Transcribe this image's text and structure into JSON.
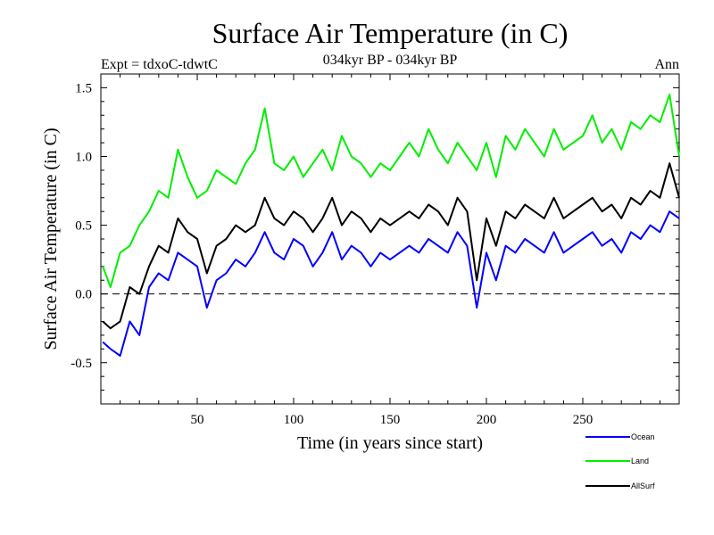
{
  "chart_data": {
    "type": "line",
    "title": "Surface Air Temperature (in C)",
    "subtitle": "034kyr BP - 034kyr BP",
    "experiment_label": "Expt = tdxoC-tdwtC",
    "season_label": "Ann",
    "xlabel": "Time (in years since start)",
    "ylabel": "Surface Air Temperature (in C)",
    "xlim": [
      0,
      300
    ],
    "ylim": [
      -0.8,
      1.6
    ],
    "x_ticks": [
      50,
      100,
      150,
      200,
      250
    ],
    "y_ticks": [
      -0.5,
      0.0,
      0.5,
      1.0,
      1.5
    ],
    "y_tick_labels": [
      "-0.5",
      "0.0",
      "0.5",
      "1.0",
      "1.5"
    ],
    "zero_line": "dashed",
    "legend_position": "bottom-right, below plot",
    "series": [
      {
        "name": "Ocean",
        "color": "#0000ff",
        "x": [
          1,
          5,
          10,
          15,
          20,
          25,
          30,
          35,
          40,
          45,
          50,
          55,
          60,
          65,
          70,
          75,
          80,
          85,
          90,
          95,
          100,
          105,
          110,
          115,
          120,
          125,
          130,
          135,
          140,
          145,
          150,
          155,
          160,
          165,
          170,
          175,
          180,
          185,
          190,
          195,
          200,
          205,
          210,
          215,
          220,
          225,
          230,
          235,
          240,
          245,
          250,
          255,
          260,
          265,
          270,
          275,
          280,
          285,
          290,
          295,
          300
        ],
        "y": [
          -0.35,
          -0.4,
          -0.45,
          -0.2,
          -0.3,
          0.05,
          0.15,
          0.1,
          0.3,
          0.25,
          0.2,
          -0.1,
          0.1,
          0.15,
          0.25,
          0.2,
          0.3,
          0.45,
          0.3,
          0.25,
          0.4,
          0.35,
          0.2,
          0.3,
          0.45,
          0.25,
          0.35,
          0.3,
          0.2,
          0.3,
          0.25,
          0.3,
          0.35,
          0.3,
          0.4,
          0.35,
          0.3,
          0.45,
          0.35,
          -0.1,
          0.3,
          0.1,
          0.35,
          0.3,
          0.4,
          0.35,
          0.3,
          0.45,
          0.3,
          0.35,
          0.4,
          0.45,
          0.35,
          0.4,
          0.3,
          0.45,
          0.4,
          0.5,
          0.45,
          0.6,
          0.55
        ]
      },
      {
        "name": "Land",
        "color": "#00ee00",
        "x": [
          1,
          5,
          10,
          15,
          20,
          25,
          30,
          35,
          40,
          45,
          50,
          55,
          60,
          65,
          70,
          75,
          80,
          85,
          90,
          95,
          100,
          105,
          110,
          115,
          120,
          125,
          130,
          135,
          140,
          145,
          150,
          155,
          160,
          165,
          170,
          175,
          180,
          185,
          190,
          195,
          200,
          205,
          210,
          215,
          220,
          225,
          230,
          235,
          240,
          245,
          250,
          255,
          260,
          265,
          270,
          275,
          280,
          285,
          290,
          295,
          300
        ],
        "y": [
          0.2,
          0.05,
          0.3,
          0.35,
          0.5,
          0.6,
          0.75,
          0.7,
          1.05,
          0.85,
          0.7,
          0.75,
          0.9,
          0.85,
          0.8,
          0.95,
          1.05,
          1.35,
          0.95,
          0.9,
          1.0,
          0.85,
          0.95,
          1.05,
          0.9,
          1.15,
          1.0,
          0.95,
          0.85,
          0.95,
          0.9,
          1.0,
          1.1,
          1.0,
          1.2,
          1.05,
          0.95,
          1.1,
          1.0,
          0.9,
          1.1,
          0.85,
          1.15,
          1.05,
          1.2,
          1.1,
          1.0,
          1.2,
          1.05,
          1.1,
          1.15,
          1.3,
          1.1,
          1.2,
          1.05,
          1.25,
          1.2,
          1.3,
          1.25,
          1.45,
          1.0
        ]
      },
      {
        "name": "AllSurf",
        "color": "#000000",
        "x": [
          1,
          5,
          10,
          15,
          20,
          25,
          30,
          35,
          40,
          45,
          50,
          55,
          60,
          65,
          70,
          75,
          80,
          85,
          90,
          95,
          100,
          105,
          110,
          115,
          120,
          125,
          130,
          135,
          140,
          145,
          150,
          155,
          160,
          165,
          170,
          175,
          180,
          185,
          190,
          195,
          200,
          205,
          210,
          215,
          220,
          225,
          230,
          235,
          240,
          245,
          250,
          255,
          260,
          265,
          270,
          275,
          280,
          285,
          290,
          295,
          300
        ],
        "y": [
          -0.2,
          -0.25,
          -0.2,
          0.05,
          0.0,
          0.2,
          0.35,
          0.3,
          0.55,
          0.45,
          0.4,
          0.15,
          0.35,
          0.4,
          0.5,
          0.45,
          0.5,
          0.7,
          0.55,
          0.5,
          0.6,
          0.55,
          0.45,
          0.55,
          0.7,
          0.5,
          0.6,
          0.55,
          0.45,
          0.55,
          0.5,
          0.55,
          0.6,
          0.55,
          0.65,
          0.6,
          0.5,
          0.7,
          0.6,
          0.1,
          0.55,
          0.35,
          0.6,
          0.55,
          0.65,
          0.6,
          0.55,
          0.7,
          0.55,
          0.6,
          0.65,
          0.7,
          0.6,
          0.65,
          0.55,
          0.7,
          0.65,
          0.75,
          0.7,
          0.95,
          0.7
        ]
      }
    ]
  }
}
